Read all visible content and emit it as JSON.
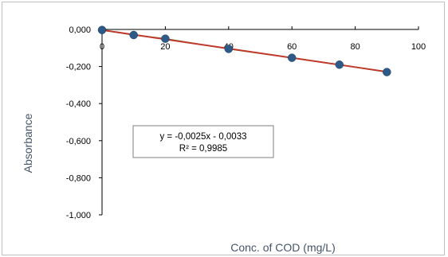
{
  "chart_data": {
    "type": "scatter",
    "title": "",
    "xlabel": "Conc. of COD (mg/L)",
    "ylabel": "Absorbance",
    "xlim": [
      0,
      100
    ],
    "ylim": [
      -1.0,
      0.0
    ],
    "x_ticks": [
      0,
      20,
      40,
      60,
      80,
      100
    ],
    "x_tick_labels": [
      "0",
      "20",
      "40",
      "60",
      "80",
      "100"
    ],
    "y_ticks": [
      0.0,
      -0.2,
      -0.4,
      -0.6,
      -0.8,
      -1.0
    ],
    "y_tick_labels": [
      "0,000",
      "-0,200",
      "-0,400",
      "-0,600",
      "-0,800",
      "-1,000"
    ],
    "series": [
      {
        "x": [
          0,
          10,
          20,
          40,
          60,
          75,
          90
        ],
        "y": [
          -0.003,
          -0.03,
          -0.05,
          -0.105,
          -0.153,
          -0.19,
          -0.23
        ],
        "color": "#2e5a87"
      }
    ],
    "trendline": {
      "slope": -0.0025,
      "intercept": -0.0033,
      "x_range": [
        0,
        90
      ],
      "color": "#c0392b",
      "equation": "y = -0,0025x - 0,0033",
      "r_squared": "R² = 0,9985"
    },
    "grid": false,
    "legend": "none"
  }
}
